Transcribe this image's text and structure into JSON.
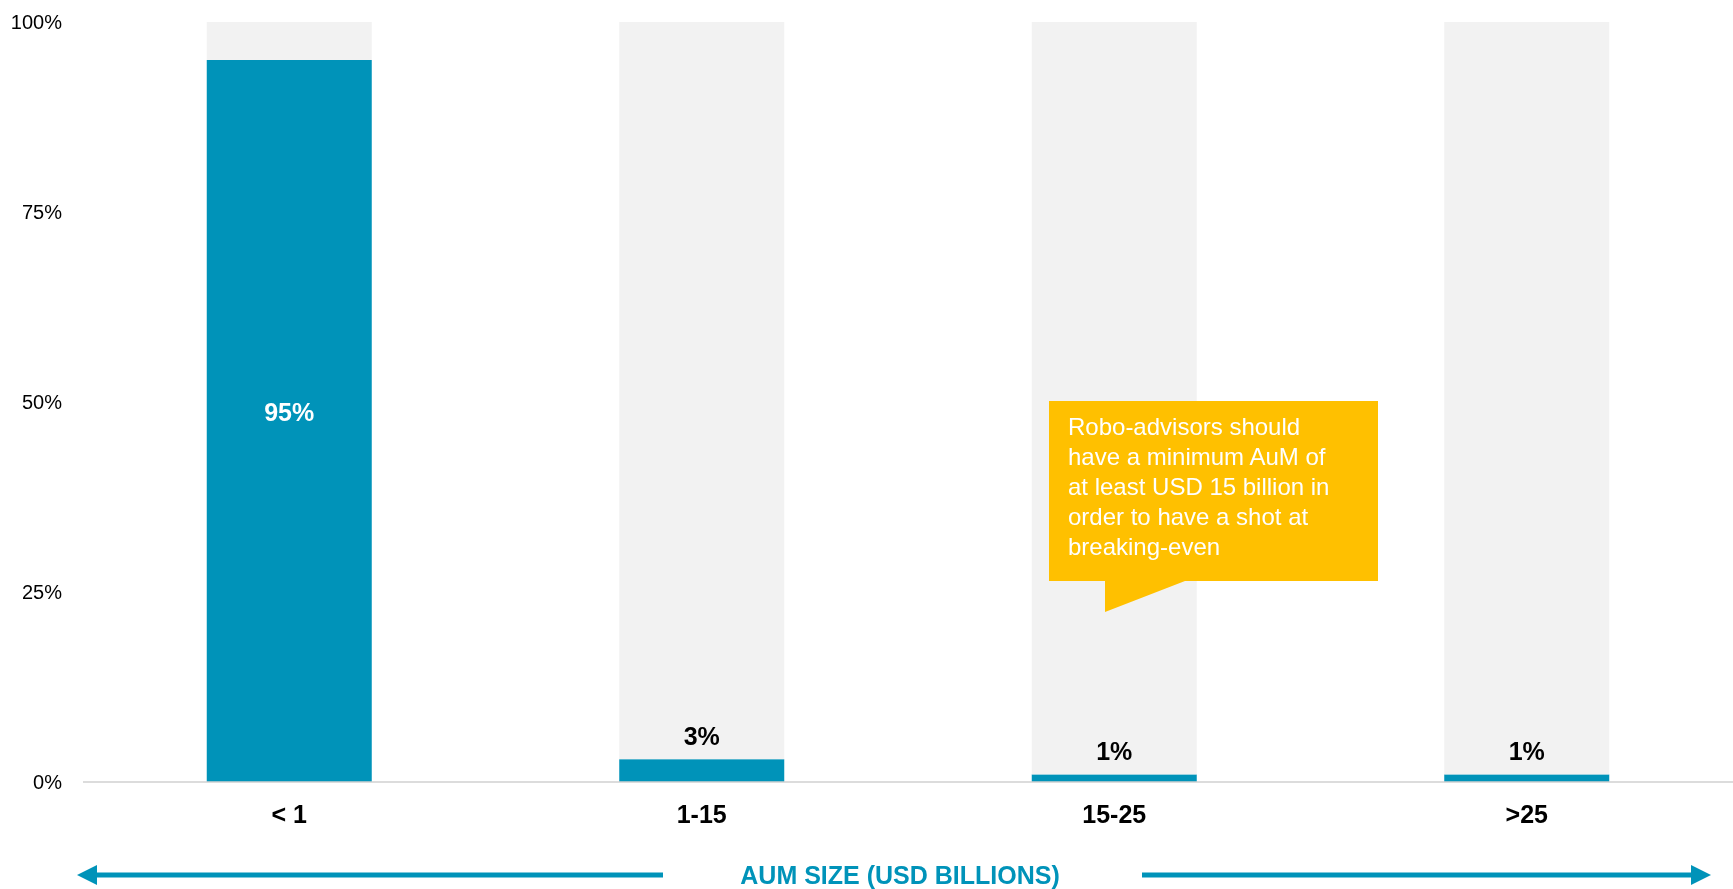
{
  "chart_data": {
    "type": "bar",
    "stacked": true,
    "categories": [
      "< 1",
      "1-15",
      "15-25",
      ">25"
    ],
    "series": [
      {
        "color": "#0093b9",
        "values": [
          95,
          3,
          1,
          1
        ],
        "value_labels": [
          "95%",
          "3%",
          "1%",
          "1%"
        ]
      },
      {
        "color": "#f2f2f2",
        "values": [
          5,
          97,
          99,
          99
        ]
      }
    ],
    "ylim": [
      0,
      100
    ],
    "yticks": [
      {
        "value": 0,
        "label": "0%"
      },
      {
        "value": 25,
        "label": "25%"
      },
      {
        "value": 50,
        "label": "50%"
      },
      {
        "value": 75,
        "label": "75%"
      },
      {
        "value": 100,
        "label": "100%"
      }
    ],
    "xlabel": "AUM SIZE (USD BILLIONS)",
    "annotations": [
      "Robo-advisors should have a minimum AuM of at least USD 15 billion in order to have a shot at breaking-even"
    ]
  }
}
